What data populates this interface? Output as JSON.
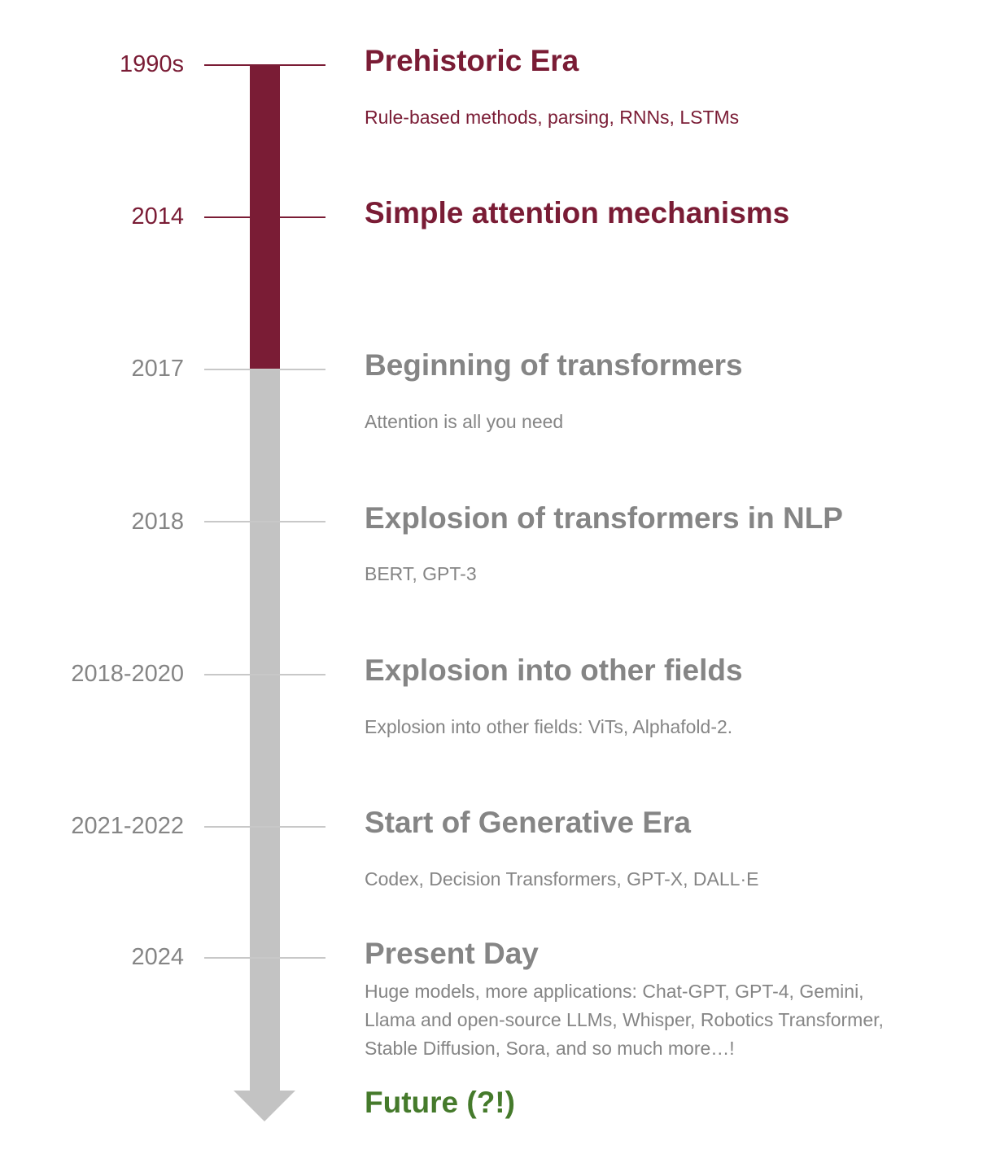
{
  "colors": {
    "maroon": "#7a1c35",
    "gray_text": "#858585",
    "gray_bar": "#c3c3c3",
    "green": "#457a2b"
  },
  "events": [
    {
      "year": "1990s",
      "title": "Prehistoric Era",
      "desc": "Rule-based methods, parsing, RNNs, LSTMs"
    },
    {
      "year": "2014",
      "title": "Simple attention mechanisms",
      "desc": ""
    },
    {
      "year": "2017",
      "title": "Beginning of transformers",
      "desc": "Attention is all you need"
    },
    {
      "year": "2018",
      "title": "Explosion of transformers in NLP",
      "desc": "BERT, GPT-3"
    },
    {
      "year": "2018-2020",
      "title": "Explosion into other fields",
      "desc": "Explosion into other fields: ViTs, Alphafold-2."
    },
    {
      "year": "2021-2022",
      "title": "Start of Generative Era",
      "desc": "Codex, Decision Transformers, GPT-X,  DALL·E"
    },
    {
      "year": "2024",
      "title": "Present Day",
      "desc_lines": [
        "Huge models, more applications: Chat-GPT, GPT-4, Gemini,",
        "Llama and open-source LLMs, Whisper, Robotics Transformer,",
        "Stable Diffusion, Sora, and so much more…!"
      ]
    }
  ],
  "future": "Future (?!)"
}
